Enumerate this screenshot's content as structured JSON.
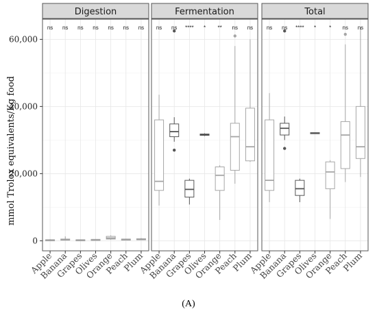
{
  "chart_data": {
    "type": "box",
    "ylabel": "mmol Trolox equivalents/Kg food",
    "ylim": [
      -3000,
      66000
    ],
    "yticks": [
      0,
      20000,
      40000,
      60000
    ],
    "ytick_labels": [
      "0",
      "20,000",
      "40,000",
      "60,000"
    ],
    "categories": [
      "Apple",
      "Banana",
      "Grapes",
      "Olives",
      "Orange",
      "Peach",
      "Plum"
    ],
    "facets": [
      {
        "name": "Digestion",
        "significance": [
          "ns",
          "ns",
          "ns",
          "ns",
          "ns",
          "ns",
          "ns"
        ],
        "boxes": [
          {
            "min": 0,
            "q1": 100,
            "median": 200,
            "q3": 300,
            "max": 500,
            "outliers": []
          },
          {
            "min": 50,
            "q1": 200,
            "median": 300,
            "q3": 500,
            "max": 1300,
            "outliers": []
          },
          {
            "min": 50,
            "q1": 150,
            "median": 200,
            "q3": 300,
            "max": 400,
            "outliers": []
          },
          {
            "min": 100,
            "q1": 200,
            "median": 300,
            "q3": 400,
            "max": 500,
            "outliers": []
          },
          {
            "min": 300,
            "q1": 500,
            "median": 800,
            "q3": 1300,
            "max": 1600,
            "outliers": []
          },
          {
            "min": 200,
            "q1": 300,
            "median": 400,
            "q3": 500,
            "max": 600,
            "outliers": []
          },
          {
            "min": 200,
            "q1": 300,
            "median": 400,
            "q3": 600,
            "max": 800,
            "outliers": []
          }
        ]
      },
      {
        "name": "Fermentation",
        "significance": [
          "ns",
          "ns",
          "****",
          "*",
          "**",
          "ns",
          "ns"
        ],
        "boxes": [
          {
            "min": 10500,
            "q1": 15000,
            "median": 17700,
            "q3": 36000,
            "max": 43500,
            "outliers": []
          },
          {
            "min": 29500,
            "q1": 31000,
            "median": 32500,
            "q3": 34800,
            "max": 36800,
            "outliers": [
              27000,
              62500
            ]
          },
          {
            "min": 10800,
            "q1": 13000,
            "median": 15300,
            "q3": 18000,
            "max": 18500,
            "outliers": []
          },
          {
            "min": 31200,
            "q1": 31400,
            "median": 31600,
            "q3": 31800,
            "max": 32000,
            "outliers": []
          },
          {
            "min": 6200,
            "q1": 15000,
            "median": 19500,
            "q3": 22000,
            "max": 22500,
            "outliers": []
          },
          {
            "min": 17000,
            "q1": 21000,
            "median": 31000,
            "q3": 35000,
            "max": 58000,
            "outliers": [
              61000
            ]
          },
          {
            "min": 23500,
            "q1": 23800,
            "median": 28000,
            "q3": 39500,
            "max": 60000,
            "outliers": []
          }
        ]
      },
      {
        "name": "Total",
        "significance": [
          "ns",
          "ns",
          "****",
          "*",
          "*",
          "ns",
          "ns"
        ],
        "boxes": [
          {
            "min": 11500,
            "q1": 15000,
            "median": 18000,
            "q3": 36000,
            "max": 44000,
            "outliers": []
          },
          {
            "min": 30000,
            "q1": 31500,
            "median": 33500,
            "q3": 35000,
            "max": 37000,
            "outliers": [
              27500,
              62500
            ]
          },
          {
            "min": 11500,
            "q1": 13500,
            "median": 15500,
            "q3": 18000,
            "max": 18500,
            "outliers": []
          },
          {
            "min": 31800,
            "q1": 31900,
            "median": 32000,
            "q3": 32200,
            "max": 32300,
            "outliers": []
          },
          {
            "min": 6500,
            "q1": 15500,
            "median": 20500,
            "q3": 23500,
            "max": 24000,
            "outliers": []
          },
          {
            "min": 17500,
            "q1": 21500,
            "median": 31500,
            "q3": 35500,
            "max": 58500,
            "outliers": [
              61500
            ]
          },
          {
            "min": 19000,
            "q1": 24500,
            "median": 28000,
            "q3": 40000,
            "max": 63500,
            "outliers": []
          }
        ]
      }
    ],
    "panel_label": "(A)",
    "grid": true
  },
  "colors": {
    "strip_bg": "#d9d9d9",
    "strip_border": "#555555",
    "panel_border": "#555555",
    "grid_major": "#e6e6e6",
    "grid_minor": "#f2f2f2",
    "digestion_box": "#9e9e9e",
    "box_dark": "#555555",
    "box_light": "#a6a6a6"
  }
}
